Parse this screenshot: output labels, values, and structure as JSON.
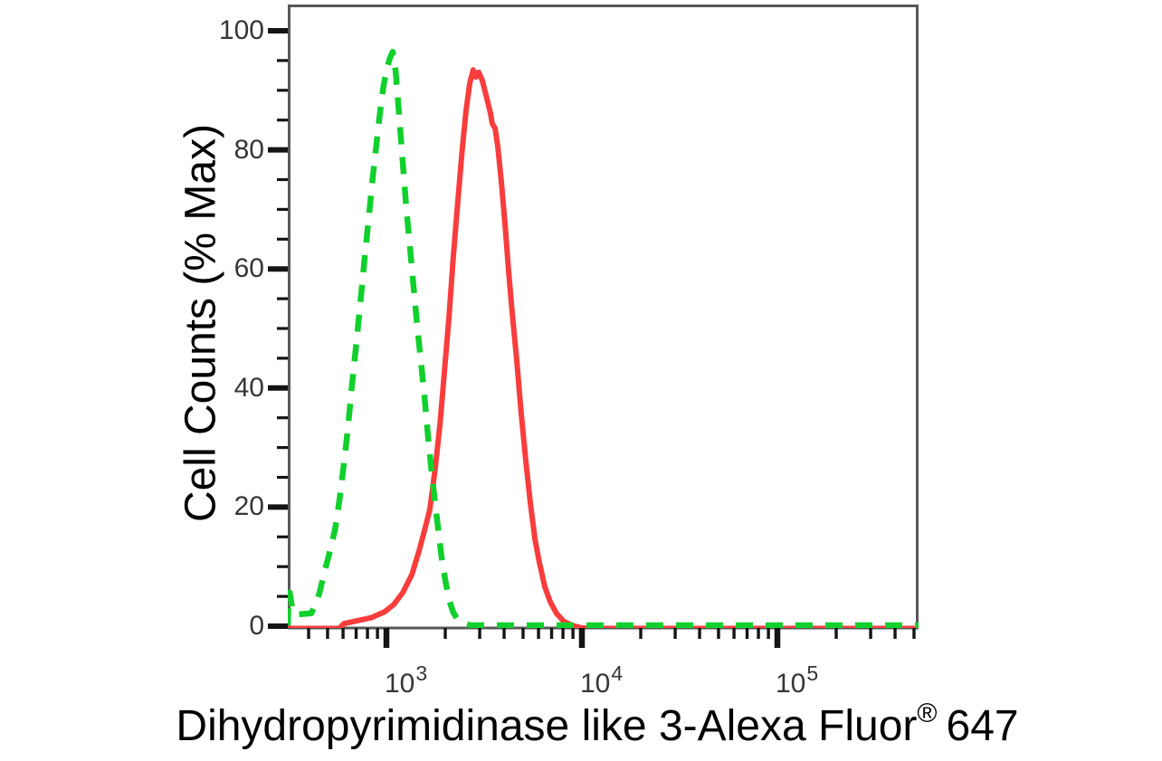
{
  "labels": {
    "y_title": "Cell Counts (% Max)",
    "x_title_main": "Dihydropyrimidinase like 3-Alexa Fluor",
    "x_title_registered": "®",
    "x_title_number": "647"
  },
  "chart_data": {
    "type": "line",
    "subtype": "flow-cytometry-histogram-overlay",
    "title": "",
    "xlabel": "Dihydropyrimidinase like 3-Alexa Fluor® 647",
    "ylabel": "Cell Counts (% Max)",
    "grid": "off",
    "legend": "none",
    "x_axis": {
      "scale": "log10",
      "range_log10": [
        2.4954,
        5.7218
      ],
      "tick_labels": [
        {
          "value": 1000,
          "base": "10",
          "exponent": "3"
        },
        {
          "value": 10000,
          "base": "10",
          "exponent": "4"
        },
        {
          "value": 100000,
          "base": "10",
          "exponent": "5"
        }
      ],
      "minor_tick_multiples": [
        2,
        3,
        4,
        5,
        6,
        7,
        8,
        9
      ],
      "minor_tick_decades": [
        2,
        3,
        4,
        5
      ]
    },
    "y_axis": {
      "ylim": [
        0,
        100
      ],
      "tick_values": [
        0,
        20,
        40,
        60,
        80,
        100
      ],
      "tick_labels": [
        "0",
        "20",
        "40",
        "60",
        "80",
        "100"
      ],
      "minor_step": 5
    },
    "series": [
      {
        "name": "red-solid-histogram",
        "color": "#f93c3c",
        "line_style": "solid",
        "peak": {
          "x": 2780,
          "y_percent": 93.8
        },
        "points": [
          [
            313,
            0
          ],
          [
            574,
            0
          ],
          [
            606,
            0.8
          ],
          [
            711,
            1.3
          ],
          [
            834,
            1.8
          ],
          [
            979,
            2.8
          ],
          [
            1089,
            4
          ],
          [
            1211,
            6
          ],
          [
            1348,
            9
          ],
          [
            1468,
            13
          ],
          [
            1582,
            17
          ],
          [
            1668,
            20
          ],
          [
            1778,
            27
          ],
          [
            1875,
            34
          ],
          [
            1978,
            43
          ],
          [
            2086,
            52
          ],
          [
            2194,
            62
          ],
          [
            2309,
            71
          ],
          [
            2435,
            80
          ],
          [
            2554,
            87
          ],
          [
            2666,
            91.5
          ],
          [
            2780,
            93.8
          ],
          [
            2872,
            92.6
          ],
          [
            2965,
            93.4
          ],
          [
            3096,
            92
          ],
          [
            3264,
            89
          ],
          [
            3406,
            86.5
          ],
          [
            3478,
            84.8
          ],
          [
            3596,
            84
          ],
          [
            3710,
            81
          ],
          [
            3873,
            75
          ],
          [
            4041,
            68
          ],
          [
            4217,
            60
          ],
          [
            4401,
            53
          ],
          [
            4643,
            45
          ],
          [
            4898,
            36
          ],
          [
            5167,
            28
          ],
          [
            5451,
            21
          ],
          [
            5751,
            15
          ],
          [
            6067,
            11
          ],
          [
            6457,
            7
          ],
          [
            6879,
            4.5
          ],
          [
            7420,
            2.5
          ],
          [
            8074,
            1.2
          ],
          [
            8892,
            0.5
          ],
          [
            9886,
            0.1
          ],
          [
            10900,
            0
          ],
          [
            527000,
            0
          ]
        ]
      },
      {
        "name": "green-dashed-histogram",
        "color": "#10d02b",
        "line_style": "dashed",
        "peak": {
          "x": 1077,
          "y_percent": 96.3
        },
        "points": [
          [
            313,
            0
          ],
          [
            316,
            4.5
          ],
          [
            320,
            5.5
          ],
          [
            331,
            2.5
          ],
          [
            343,
            1.8
          ],
          [
            413,
            2
          ],
          [
            440,
            4
          ],
          [
            455,
            5.5
          ],
          [
            478,
            8.5
          ],
          [
            510,
            12
          ],
          [
            545,
            16
          ],
          [
            575,
            21
          ],
          [
            605,
            27
          ],
          [
            635,
            33
          ],
          [
            665,
            40
          ],
          [
            700,
            47
          ],
          [
            735,
            54
          ],
          [
            770,
            61
          ],
          [
            810,
            68
          ],
          [
            850,
            75
          ],
          [
            890,
            81
          ],
          [
            930,
            86.5
          ],
          [
            965,
            90.5
          ],
          [
            1000,
            93.2
          ],
          [
            1040,
            95.2
          ],
          [
            1077,
            96.3
          ],
          [
            1115,
            93
          ],
          [
            1160,
            86
          ],
          [
            1210,
            78
          ],
          [
            1265,
            70
          ],
          [
            1320,
            63.5
          ],
          [
            1380,
            56.5
          ],
          [
            1440,
            50
          ],
          [
            1500,
            44.5
          ],
          [
            1565,
            38.5
          ],
          [
            1630,
            32
          ],
          [
            1700,
            26
          ],
          [
            1775,
            20.5
          ],
          [
            1850,
            15.5
          ],
          [
            1930,
            10.5
          ],
          [
            2015,
            7
          ],
          [
            2105,
            4
          ],
          [
            2195,
            2.2
          ],
          [
            2310,
            1
          ],
          [
            2455,
            0.4
          ],
          [
            2700,
            0
          ],
          [
            527000,
            0
          ]
        ]
      }
    ]
  }
}
